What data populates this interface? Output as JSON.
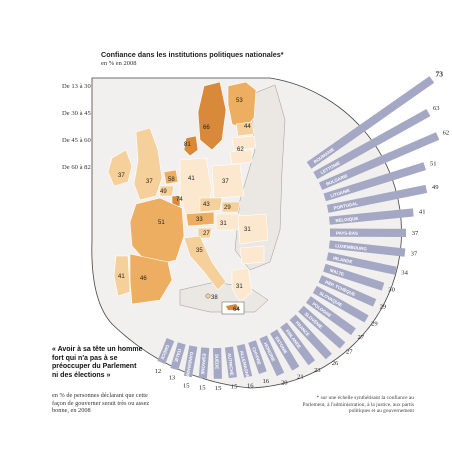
{
  "header": {
    "title": "Confiance dans les institutions politiques nationales*",
    "subtitle": "en % en 2008"
  },
  "legend": {
    "items": [
      {
        "label": "De 13 à 30",
        "color": "#fbe8cf"
      },
      {
        "label": "De 30 à 45",
        "color": "#f6d09a"
      },
      {
        "label": "De 45 à 60",
        "color": "#eeae61"
      },
      {
        "label": "De 60 à 82",
        "color": "#d9893a"
      }
    ]
  },
  "colors": {
    "bar": "#a5a8c4",
    "bar_text": "#ffffff",
    "map_sea": "#f2f0ee",
    "map_outline": "#333333",
    "non_eu": "#ebe8e4"
  },
  "map_labels": [
    {
      "value": "53"
    },
    {
      "value": "66"
    },
    {
      "value": "44"
    },
    {
      "value": "81"
    },
    {
      "value": "62"
    },
    {
      "value": "37"
    },
    {
      "value": "37"
    },
    {
      "value": "58"
    },
    {
      "value": "41"
    },
    {
      "value": "37"
    },
    {
      "value": "49"
    },
    {
      "value": "74"
    },
    {
      "value": "29"
    },
    {
      "value": "51"
    },
    {
      "value": "43"
    },
    {
      "value": "33"
    },
    {
      "value": "31"
    },
    {
      "value": "35"
    },
    {
      "value": "27"
    },
    {
      "value": "31"
    },
    {
      "value": "41"
    },
    {
      "value": "46"
    },
    {
      "value": "31"
    },
    {
      "value": "38"
    },
    {
      "value": "64"
    }
  ],
  "chart_data": {
    "type": "bar",
    "title": "« Avoir à sa tête un homme fort qui n'a pas à se préoccuper du Parlement ni des élections »",
    "subtitle": "en % de personnes déclarant que cette façon de gouverner serait très ou assez bonne, en 2008",
    "categories": [
      "Roumanie",
      "Lettonie",
      "Bulgarie",
      "Lituanie",
      "Portugal",
      "Belgique",
      "Pays-Bas",
      "Luxembourg",
      "Irlande",
      "Malte",
      "Rép. tchèque",
      "Slovaquie",
      "Pologne",
      "Slovénie",
      "France",
      "Finlande",
      "Estonie",
      "Hongrie",
      "Chypre",
      "Allemagne",
      "Autriche",
      "Suède",
      "Espagne",
      "Danemark",
      "Italie",
      "Grèce"
    ],
    "values": [
      73,
      63,
      62,
      51,
      49,
      41,
      37,
      37,
      34,
      30,
      29,
      29,
      27,
      27,
      26,
      23,
      21,
      20,
      16,
      16,
      15,
      15,
      15,
      15,
      13,
      12
    ],
    "max": 73
  },
  "quote": {
    "text": "« Avoir à sa tête un homme fort qui n'a pas à se préoccuper du Parlement ni des élections »",
    "note": "en % de personnes déclarant que cette façon de gouverner serait très ou assez bonne, en 2008"
  },
  "footnote": "* sur une échelle synthétisant la confiance au Parlement, à l'administration, à la justice, aux partis politiques et au gouvernement"
}
